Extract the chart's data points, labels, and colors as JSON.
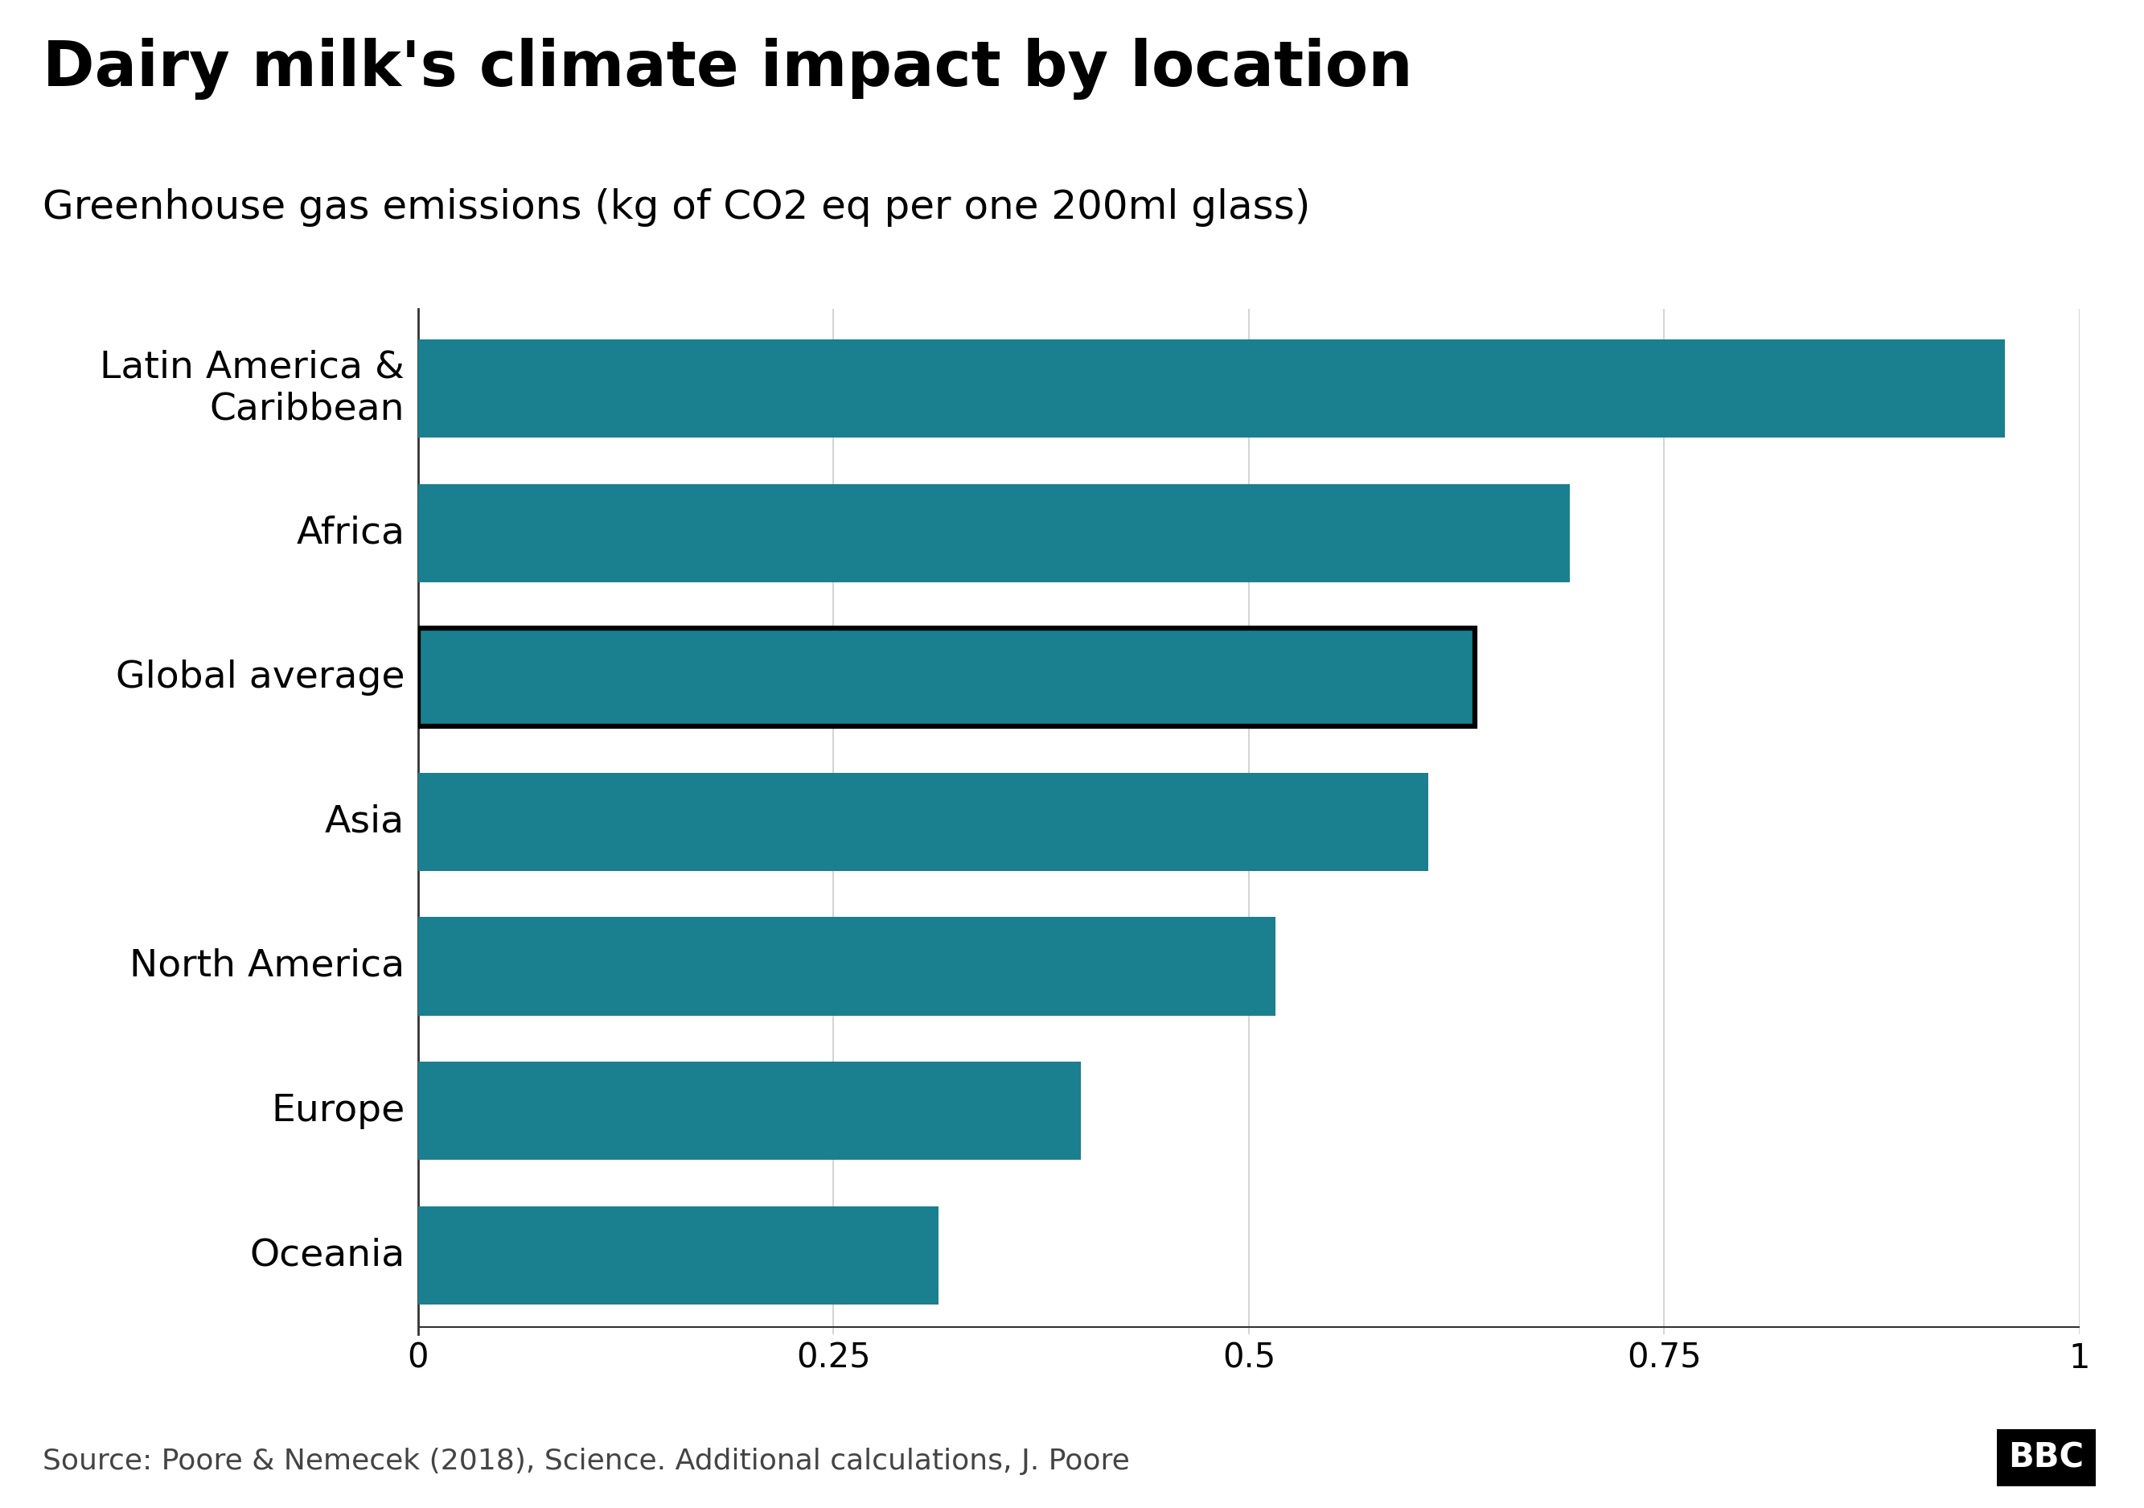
{
  "title": "Dairy milk's climate impact by location",
  "subtitle": "Greenhouse gas emissions (kg of CO2 eq per one 200ml glass)",
  "categories": [
    "Latin America &\nCaribbean",
    "Africa",
    "Global average",
    "Asia",
    "North America",
    "Europe",
    "Oceania"
  ],
  "values": [
    0.955,
    0.693,
    0.636,
    0.608,
    0.516,
    0.399,
    0.313
  ],
  "bar_color": "#1a7f8e",
  "global_average_index": 2,
  "xlim": [
    0,
    1.0
  ],
  "xticks": [
    0,
    0.25,
    0.5,
    0.75,
    1.0
  ],
  "xtick_labels": [
    "0",
    "0.25",
    "0.5",
    "0.75",
    "1"
  ],
  "source_text": "Source: Poore & Nemecek (2018), Science. Additional calculations, J. Poore",
  "bbc_text": "BBC",
  "background_color": "#ffffff",
  "title_fontsize": 56,
  "subtitle_fontsize": 36,
  "tick_fontsize": 30,
  "ylabel_fontsize": 34,
  "source_fontsize": 26,
  "bbc_fontsize": 30,
  "bar_height": 0.68
}
